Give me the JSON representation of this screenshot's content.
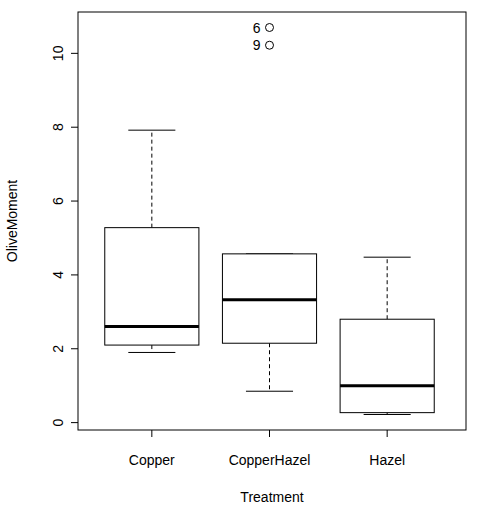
{
  "chart_data": {
    "type": "box",
    "x_label": "Treatment",
    "y_label": "OliveMoment",
    "categories": [
      "Copper",
      "CopperHazel",
      "Hazel"
    ],
    "whisker_low": [
      1.9,
      0.85,
      0.22
    ],
    "q1": [
      2.1,
      2.15,
      0.27
    ],
    "median": [
      2.6,
      3.33,
      1.0
    ],
    "q3": [
      5.28,
      4.57,
      2.8
    ],
    "whisker_high": [
      7.92,
      4.57,
      4.48
    ],
    "outliers": [
      [],
      [
        {
          "value": 10.7,
          "label": "6"
        },
        {
          "value": 10.22,
          "label": "9"
        }
      ],
      []
    ],
    "color": "#000000",
    "ylim": [
      -0.2,
      11.12
    ],
    "yticks": [
      0,
      2,
      4,
      6,
      8,
      10
    ]
  }
}
